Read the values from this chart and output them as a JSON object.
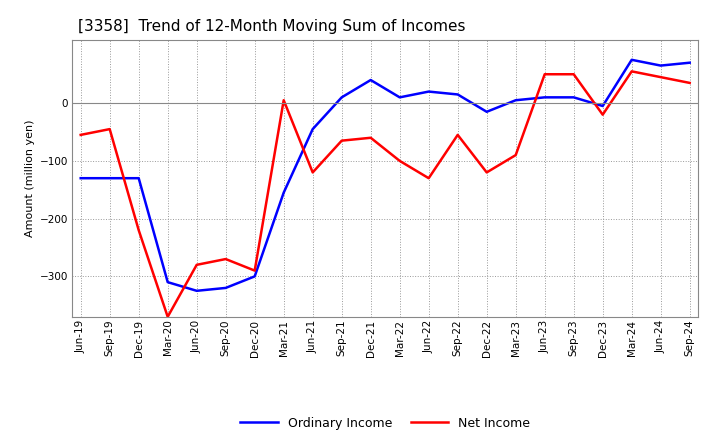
{
  "title": "[3358]  Trend of 12-Month Moving Sum of Incomes",
  "ylabel": "Amount (million yen)",
  "x_labels": [
    "Jun-19",
    "Sep-19",
    "Dec-19",
    "Mar-20",
    "Jun-20",
    "Sep-20",
    "Dec-20",
    "Mar-21",
    "Jun-21",
    "Sep-21",
    "Dec-21",
    "Mar-22",
    "Jun-22",
    "Sep-22",
    "Dec-22",
    "Mar-23",
    "Jun-23",
    "Sep-23",
    "Dec-23",
    "Mar-24",
    "Jun-24",
    "Sep-24"
  ],
  "ordinary_income": [
    -130,
    -130,
    -130,
    -310,
    -325,
    -320,
    -300,
    -155,
    -45,
    10,
    40,
    10,
    20,
    15,
    -15,
    5,
    10,
    10,
    -5,
    75,
    65,
    70
  ],
  "net_income": [
    -55,
    -45,
    -220,
    -370,
    -280,
    -270,
    -290,
    5,
    -120,
    -65,
    -60,
    -100,
    -130,
    -55,
    -120,
    -90,
    50,
    50,
    -20,
    55,
    45,
    35
  ],
  "ordinary_color": "#0000FF",
  "net_color": "#FF0000",
  "ylim": [
    -370,
    110
  ],
  "yticks": [
    -300,
    -200,
    -100,
    0
  ],
  "background_color": "#FFFFFF",
  "line_width": 1.8,
  "legend_labels": [
    "Ordinary Income",
    "Net Income"
  ],
  "title_fontsize": 11,
  "ylabel_fontsize": 8,
  "tick_fontsize": 7.5
}
